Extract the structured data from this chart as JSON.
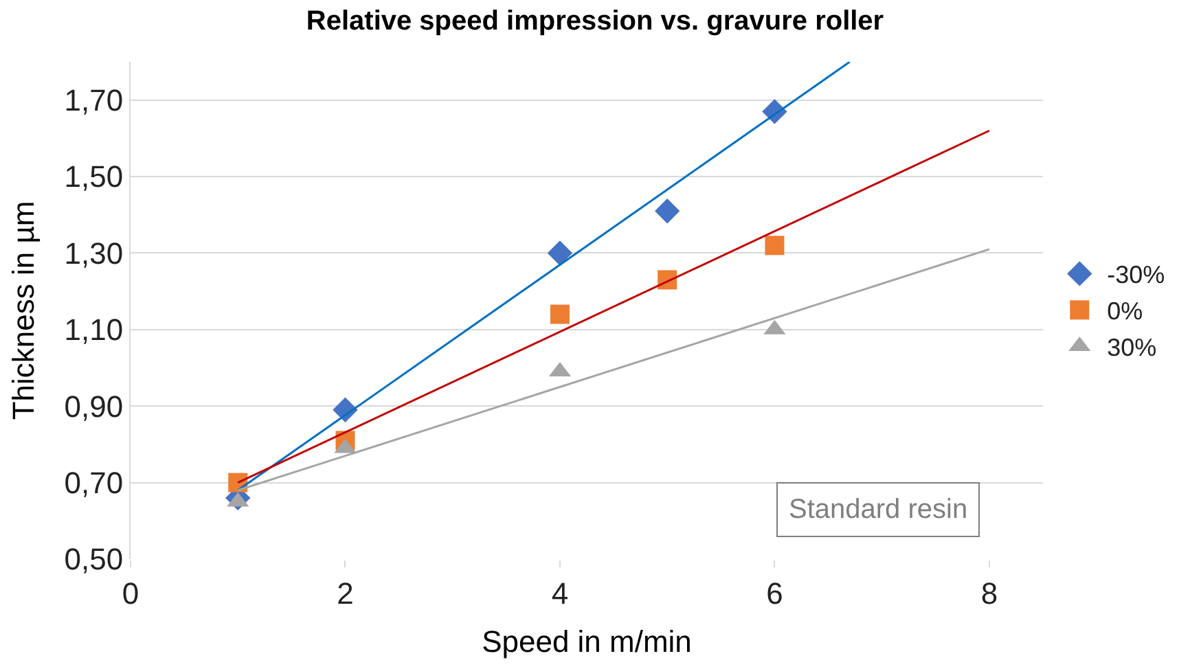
{
  "chart_data": {
    "type": "scatter",
    "title": "Relative speed impression vs. gravure roller",
    "xlabel": "Speed in m/min",
    "ylabel": "Thickness in µm",
    "xlim": [
      0,
      8.5
    ],
    "xticks": [
      0,
      2,
      4,
      6,
      8
    ],
    "ylim": [
      0.5,
      1.8
    ],
    "yticks": [
      {
        "value": 0.5,
        "label": "0,50"
      },
      {
        "value": 0.7,
        "label": "0,70"
      },
      {
        "value": 0.9,
        "label": "0,90"
      },
      {
        "value": 1.1,
        "label": "1,10"
      },
      {
        "value": 1.3,
        "label": "1,30"
      },
      {
        "value": 1.5,
        "label": "1,50"
      },
      {
        "value": 1.7,
        "label": "1,70"
      }
    ],
    "grid": "y",
    "legend": "right",
    "series": [
      {
        "name": "-30%",
        "color": "#4472c4",
        "marker": "diamond",
        "x": [
          1,
          2,
          4,
          5,
          6
        ],
        "values": [
          0.66,
          0.89,
          1.3,
          1.41,
          1.67
        ]
      },
      {
        "name": "0%",
        "color": "#ed7d31",
        "marker": "square",
        "x": [
          1,
          2,
          4,
          5,
          6
        ],
        "values": [
          0.7,
          0.81,
          1.14,
          1.23,
          1.32
        ]
      },
      {
        "name": "30%",
        "color": "#a5a5a5",
        "marker": "triangle",
        "x": [
          1,
          2,
          4,
          6
        ],
        "values": [
          0.65,
          0.79,
          0.99,
          1.1
        ]
      },
      {
        "type": "line",
        "color": "#0070c0",
        "x": [
          1,
          6.7
        ],
        "values": [
          0.68,
          1.8
        ]
      },
      {
        "type": "line",
        "color": "#c00000",
        "x": [
          1,
          8
        ],
        "values": [
          0.7,
          1.62
        ]
      },
      {
        "type": "line",
        "color": "#a5a5a5",
        "x": [
          1,
          8
        ],
        "values": [
          0.68,
          1.31
        ]
      }
    ],
    "annotations": [
      "Standard resin"
    ]
  }
}
